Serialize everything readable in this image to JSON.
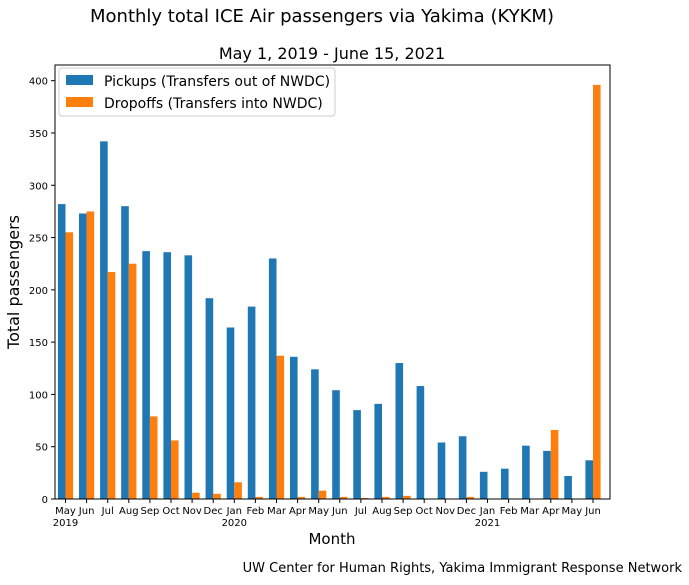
{
  "figure": {
    "suptitle": "Monthly total ICE Air passengers via Yakima (KYKM)",
    "footer": "UW Center for Human Rights, Yakima Immigrant Response Network"
  },
  "chart_data": {
    "type": "bar",
    "title": "May 1, 2019 - June 15, 2021",
    "xlabel": "Month",
    "ylabel": "Total passengers",
    "ylim": [
      0,
      415
    ],
    "yticks": [
      0,
      50,
      100,
      150,
      200,
      250,
      300,
      350,
      400
    ],
    "categories": [
      "May",
      "Jun",
      "Jul",
      "Aug",
      "Sep",
      "Oct",
      "Nov",
      "Dec",
      "Jan",
      "Feb",
      "Mar",
      "Apr",
      "May",
      "Jun",
      "Jul",
      "Aug",
      "Sep",
      "Oct",
      "Nov",
      "Dec",
      "Jan",
      "Feb",
      "Mar",
      "Apr",
      "May",
      "Jun"
    ],
    "year_labels": [
      {
        "index": 0,
        "label": "2019"
      },
      {
        "index": 8,
        "label": "2020"
      },
      {
        "index": 20,
        "label": "2021"
      }
    ],
    "series": [
      {
        "name": "Pickups (Transfers out of NWDC)",
        "color": "#1f77b4",
        "values": [
          282,
          273,
          342,
          280,
          237,
          236,
          233,
          192,
          164,
          184,
          230,
          136,
          124,
          104,
          85,
          91,
          130,
          108,
          54,
          60,
          26,
          29,
          51,
          46,
          22,
          37
        ]
      },
      {
        "name": "Dropoffs (Transfers into NWDC)",
        "color": "#ff7f0e",
        "values": [
          255,
          275,
          217,
          225,
          79,
          56,
          6,
          5,
          16,
          2,
          137,
          2,
          8,
          2,
          1,
          2,
          3,
          0,
          0,
          2,
          0,
          0,
          0,
          66,
          0,
          396
        ]
      }
    ],
    "legend_position": "top-left",
    "grid": false
  }
}
